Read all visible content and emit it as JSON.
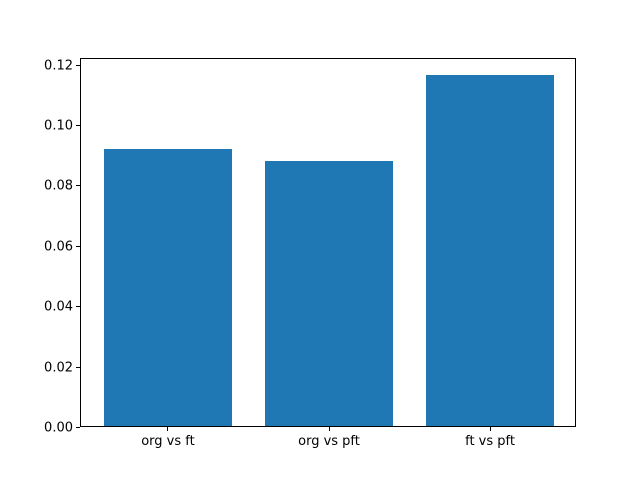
{
  "chart_data": {
    "type": "bar",
    "title": "",
    "xlabel": "",
    "ylabel": "",
    "categories": [
      "org vs ft",
      "org vs pft",
      "ft vs pft"
    ],
    "values": [
      0.0918,
      0.0877,
      0.1164
    ],
    "ylim": [
      0,
      0.1222
    ],
    "xlim": [
      -0.54,
      2.54
    ],
    "yticks": [
      0,
      0.02,
      0.04,
      0.06,
      0.08,
      0.1,
      0.12
    ],
    "ytick_labels": [
      "0.00",
      "0.02",
      "0.04",
      "0.06",
      "0.08",
      "0.10",
      "0.12"
    ],
    "bar_color": "#1f77b4",
    "bar_width_frac": 0.8,
    "axis_color": "#000000",
    "background_color": "#ffffff",
    "grid": false,
    "legend": null
  }
}
